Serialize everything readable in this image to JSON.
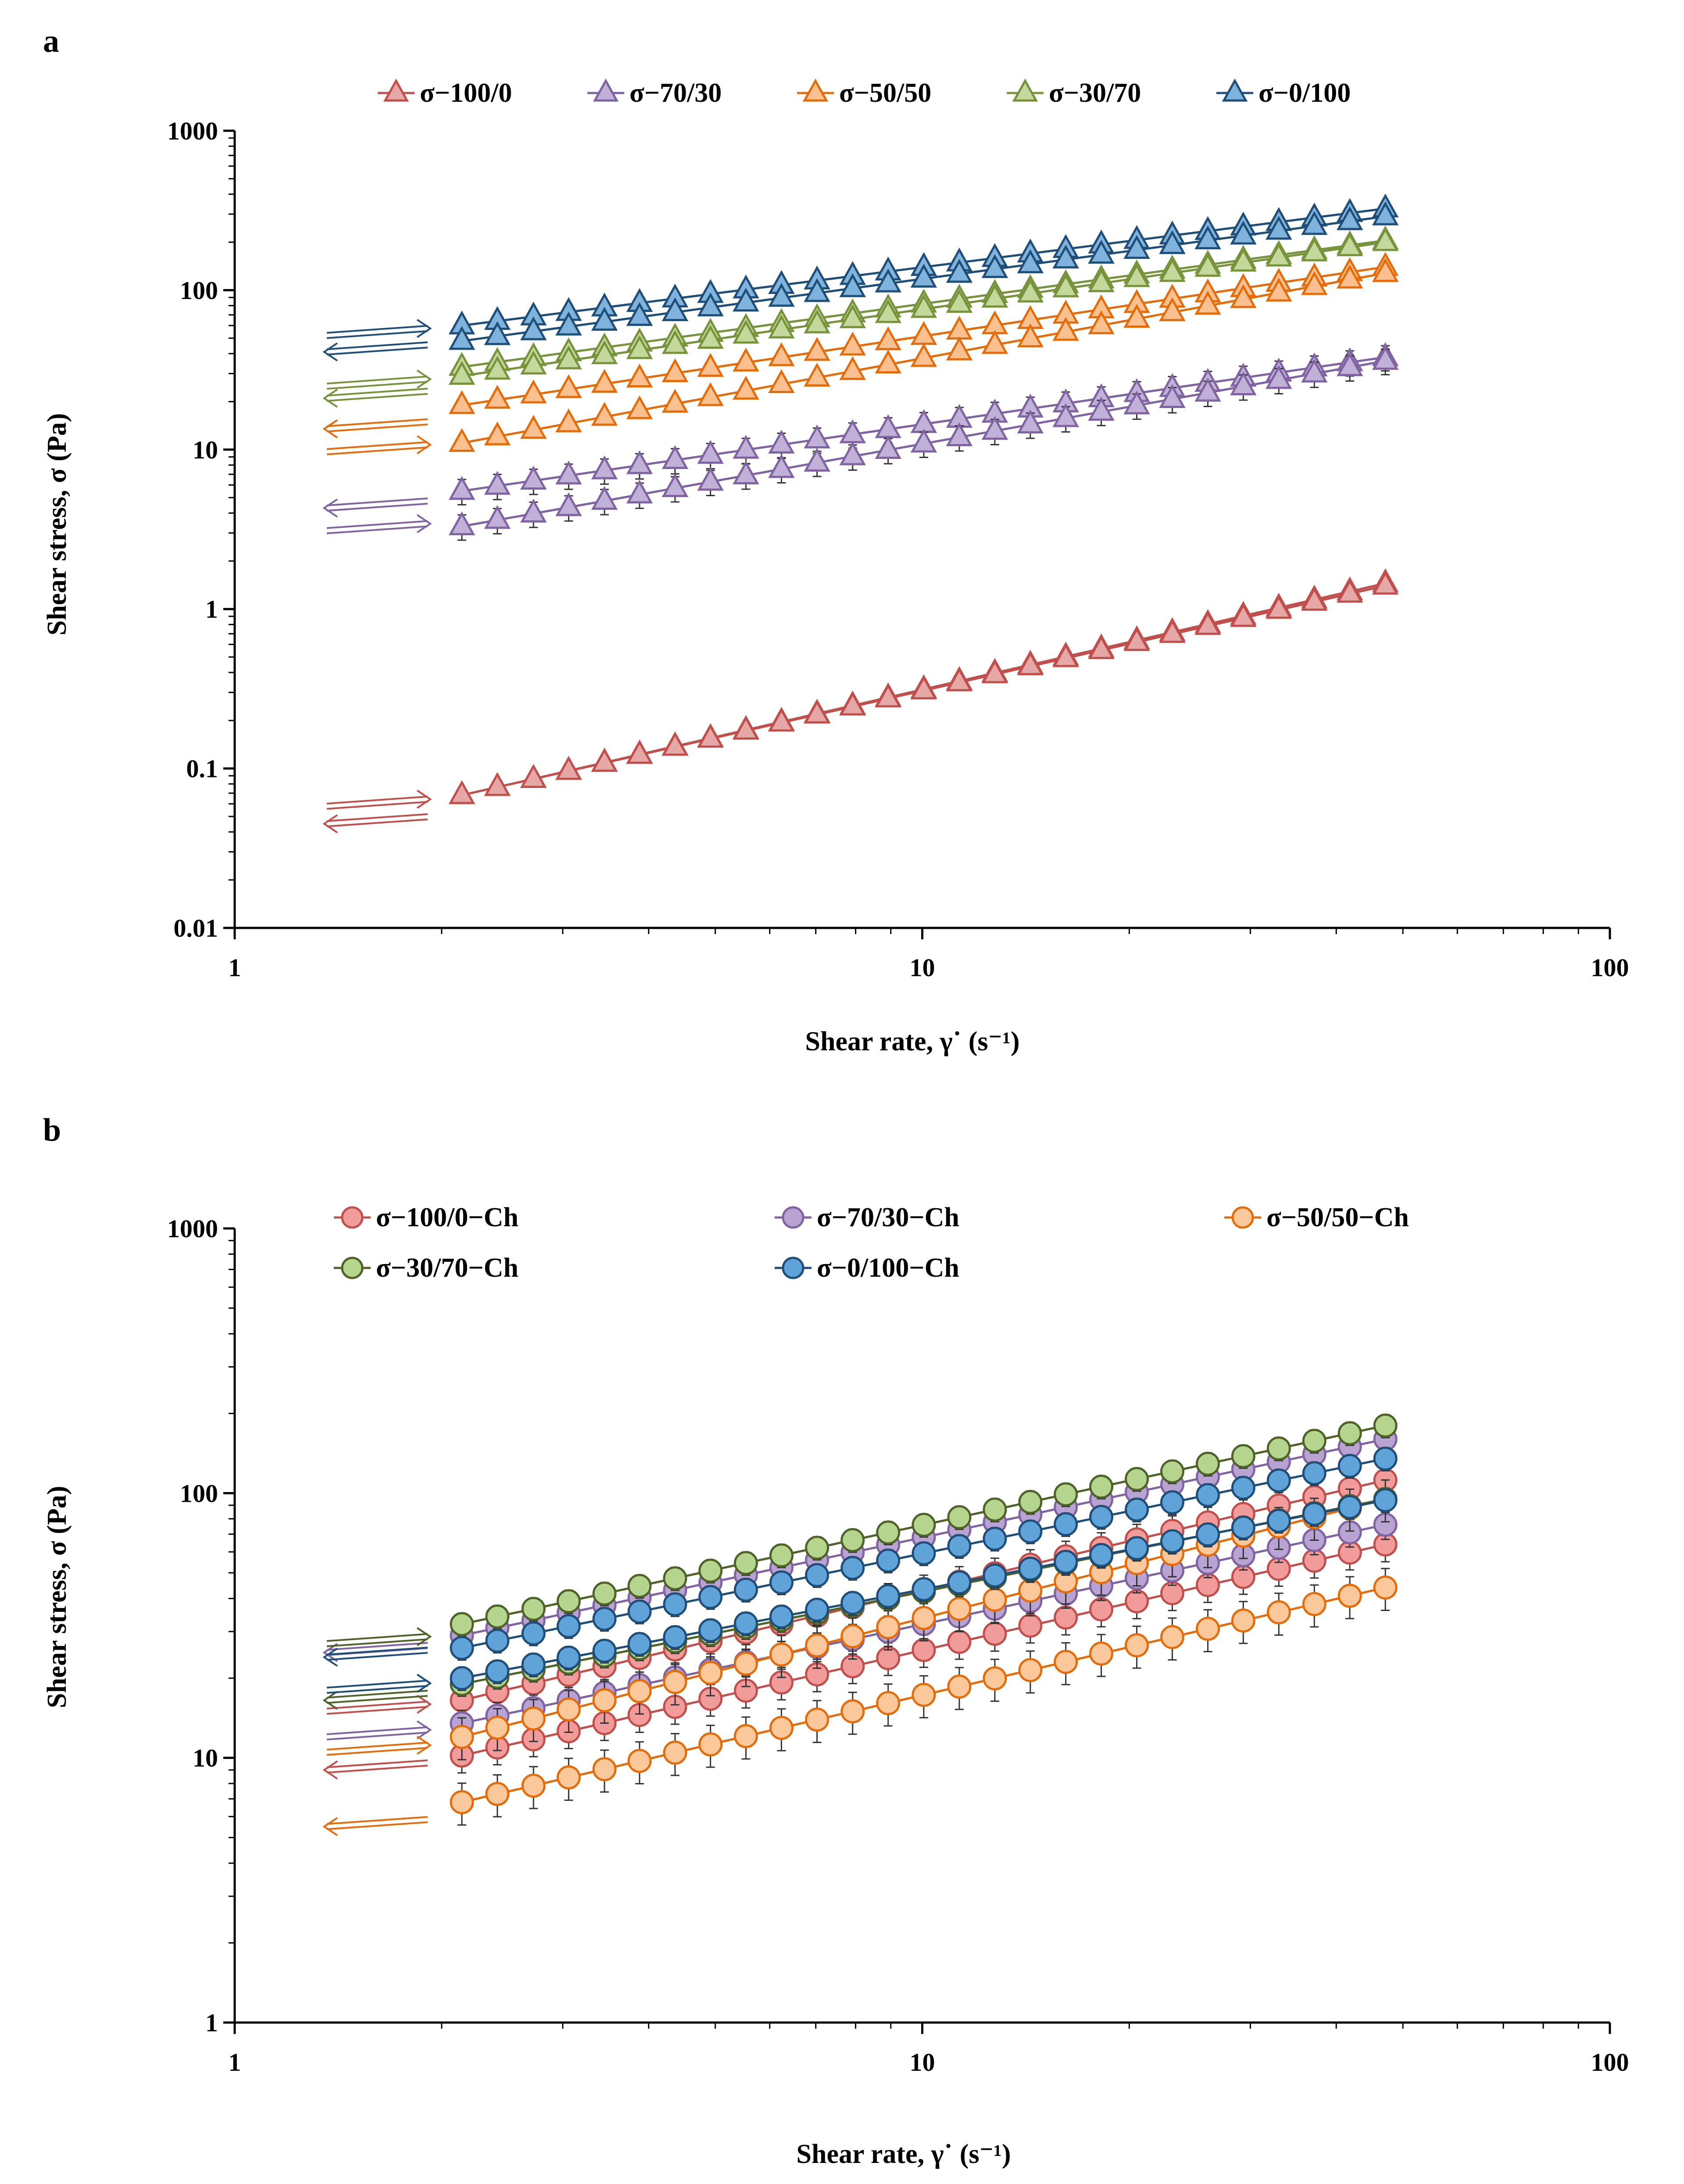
{
  "chart_data": [
    {
      "panel_label": "a",
      "type": "scatter",
      "xscale": "log",
      "yscale": "log",
      "xlim": [
        1,
        100
      ],
      "ylim": [
        0.01,
        1000
      ],
      "xticks": [
        1,
        10,
        100
      ],
      "xtick_labels": [
        "1",
        "10",
        "100"
      ],
      "yticks": [
        0.01,
        0.1,
        1,
        10,
        100,
        1000
      ],
      "ytick_labels": [
        "0.01",
        "0.1",
        "1",
        "10",
        "100",
        "1000"
      ],
      "xlabel": "Shear rate, γ˙ (s⁻¹)",
      "ylabel": "Shear stress, σ (Pa)",
      "marker": "triangle",
      "legend_position": "top",
      "x": [
        2.14,
        2.41,
        2.72,
        3.06,
        3.45,
        3.88,
        4.37,
        4.92,
        5.54,
        6.24,
        7.03,
        7.92,
        8.92,
        10.05,
        11.32,
        12.75,
        14.36,
        16.17,
        18.21,
        20.51,
        23.1,
        26.02,
        29.3,
        33.0,
        37.17,
        41.86,
        47.15
      ],
      "series": [
        {
          "name": "σ−100/0",
          "color": "#c0504d",
          "fill": "#e6a8a6",
          "up_start": 0.068,
          "up_end": 1.4,
          "down_start": 0.068,
          "down_end": 1.45,
          "error_rel": 0.02,
          "arrows": {
            "up_y": 0.058,
            "down_y": 0.045
          }
        },
        {
          "name": "σ−70/30",
          "color": "#8064a2",
          "fill": "#c1b0d8",
          "up_start": 3.3,
          "up_end": 36,
          "down_start": 5.5,
          "down_end": 38,
          "error_rel": 0.18,
          "arrows": {
            "up_y": 3.1,
            "down_y": 4.3
          }
        },
        {
          "name": "σ−50/50",
          "color": "#e46c0a",
          "fill": "#fbc08f",
          "up_start": 11,
          "up_end": 128,
          "down_start": 19,
          "down_end": 140,
          "error_rel": 0.07,
          "arrows": {
            "up_y": 9.7,
            "down_y": 13.5
          }
        },
        {
          "name": "σ−30/70",
          "color": "#77933c",
          "fill": "#c3d89a",
          "up_start": 29,
          "up_end": 200,
          "down_start": 33,
          "down_end": 205,
          "error_rel": 0.07,
          "arrows": {
            "up_y": 25,
            "down_y": 21
          }
        },
        {
          "name": "σ−0/100",
          "color": "#1f4e79",
          "fill": "#7fb2dc",
          "up_start": 48,
          "up_end": 290,
          "down_start": 60,
          "down_end": 325,
          "error_rel": 0.08,
          "arrows": {
            "up_y": 52,
            "down_y": 41
          }
        }
      ]
    },
    {
      "panel_label": "b",
      "type": "scatter",
      "xscale": "log",
      "yscale": "log",
      "xlim": [
        1,
        100
      ],
      "ylim": [
        1,
        1000
      ],
      "xticks": [
        1,
        10,
        100
      ],
      "xtick_labels": [
        "1",
        "10",
        "100"
      ],
      "yticks": [
        1,
        10,
        100,
        1000
      ],
      "ytick_labels": [
        "1",
        "10",
        "100",
        "1000"
      ],
      "xlabel": "Shear rate, γ˙ (s⁻¹)",
      "ylabel": "Shear stress, σ (Pa)",
      "marker": "circle",
      "legend_position": "top",
      "x": [
        2.14,
        2.41,
        2.72,
        3.06,
        3.45,
        3.88,
        4.37,
        4.92,
        5.54,
        6.24,
        7.03,
        7.92,
        8.92,
        10.05,
        11.32,
        12.75,
        14.36,
        16.17,
        18.21,
        20.51,
        23.1,
        26.02,
        29.3,
        33.0,
        37.17,
        41.86,
        47.15
      ],
      "series": [
        {
          "name": "σ−100/0−Ch",
          "color": "#c0504d",
          "fill": "#f19c9a",
          "up_start": 10.2,
          "up_end": 64,
          "down_start": 16.5,
          "down_end": 112,
          "error_rel": 0.14,
          "arrows": {
            "up_y": 15,
            "down_y": 9
          }
        },
        {
          "name": "σ−70/30−Ch",
          "color": "#8064a2",
          "fill": "#b8a3d2",
          "up_start": 13.5,
          "up_end": 76,
          "down_start": 29,
          "down_end": 160,
          "error_rel": 0.12,
          "arrows": {
            "up_y": 12,
            "down_y": 25
          }
        },
        {
          "name": "σ−50/50−Ch",
          "color": "#e46c0a",
          "fill": "#fbc89c",
          "up_start": 6.8,
          "up_end": 44,
          "down_start": 12,
          "down_end": 95,
          "error_rel": 0.18,
          "arrows": {
            "up_y": 10.5,
            "down_y": 5.5
          }
        },
        {
          "name": "σ−30/70−Ch",
          "color": "#4f6228",
          "fill": "#b5d58e",
          "up_start": 19,
          "up_end": 95,
          "down_start": 32,
          "down_end": 180,
          "error_rel": 0.1,
          "arrows": {
            "up_y": 27,
            "down_y": 16.5
          }
        },
        {
          "name": "σ−0/100−Ch",
          "color": "#1f4e79",
          "fill": "#5fa3d8",
          "up_start": 20,
          "up_end": 94,
          "down_start": 26,
          "down_end": 135,
          "error_rel": 0.1,
          "arrows": {
            "up_y": 18,
            "down_y": 24
          }
        }
      ]
    }
  ]
}
